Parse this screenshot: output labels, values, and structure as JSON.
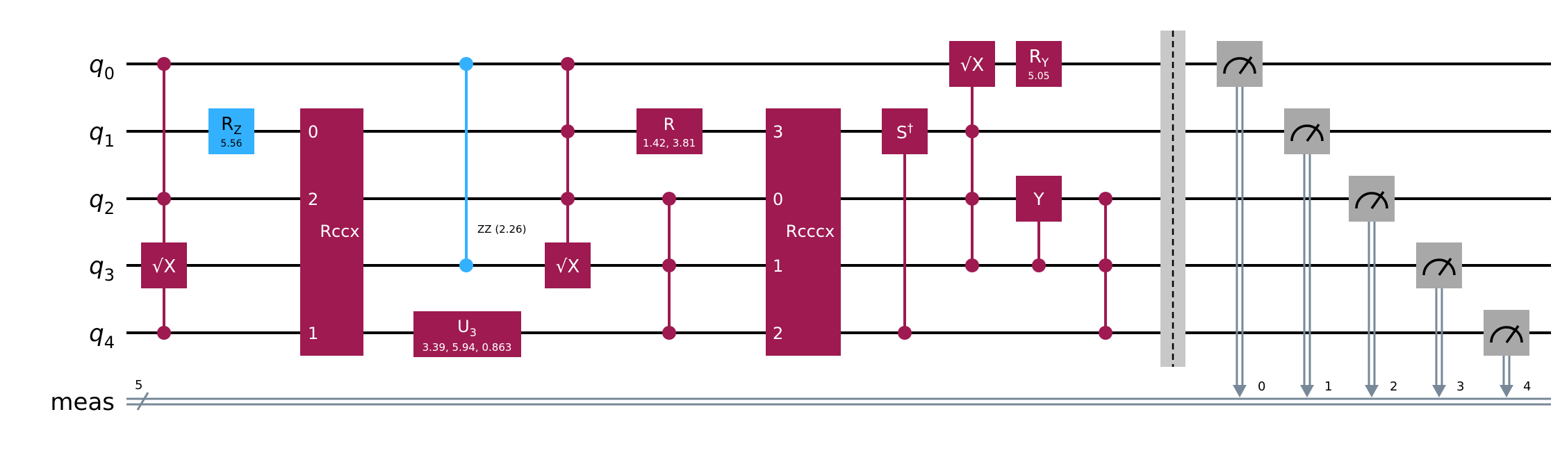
{
  "wires": {
    "qubits": [
      {
        "name": "q",
        "index": "0"
      },
      {
        "name": "q",
        "index": "1"
      },
      {
        "name": "q",
        "index": "2"
      },
      {
        "name": "q",
        "index": "3"
      },
      {
        "name": "q",
        "index": "4"
      }
    ],
    "classical": {
      "name": "meas",
      "width": "5"
    }
  },
  "colors": {
    "magenta": "#9E1A51",
    "blue": "#33B1FF",
    "gray": "#A8A8A8",
    "classical": "#778899",
    "wire": "#000000"
  },
  "gates": {
    "sx_q3": "√X",
    "rz": {
      "main": "R",
      "sub": "Z",
      "param": "5.56"
    },
    "rccx": {
      "name": "Rccx",
      "ports": [
        "0",
        "2",
        "1"
      ]
    },
    "zz": {
      "label": "ZZ (2.26)"
    },
    "u3": {
      "main": "U",
      "sub": "3",
      "param": "3.39, 5.94, 0.863"
    },
    "csx_target": "√X",
    "r": {
      "main": "R",
      "param": "1.42, 3.81"
    },
    "rcccx": {
      "name": "Rcccx",
      "ports": [
        "3",
        "0",
        "1",
        "2"
      ]
    },
    "sdg": {
      "main": "S",
      "sup": "†"
    },
    "sx_q0": "√X",
    "ry": {
      "main": "R",
      "sub": "Y",
      "param": "5.05"
    },
    "y": "Y"
  },
  "measurements": {
    "bit_labels": [
      "0",
      "1",
      "2",
      "3",
      "4"
    ]
  }
}
